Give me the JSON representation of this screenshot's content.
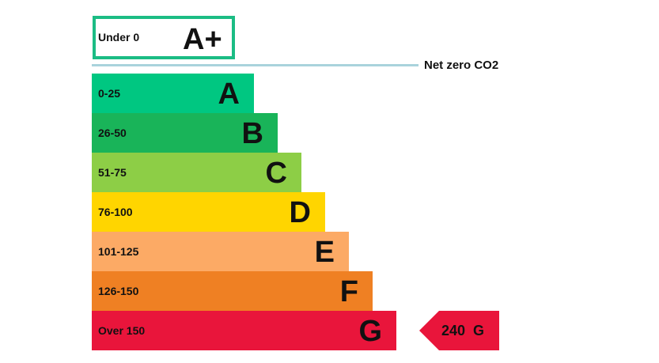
{
  "chart_data": {
    "type": "bar",
    "top_band": {
      "range": "Under 0",
      "letter": "A+",
      "border_color": "#1bbc84"
    },
    "net_zero_label": "Net zero CO2",
    "net_zero_line_color": "#a9d3dc",
    "bands": [
      {
        "range": "0-25",
        "letter": "A",
        "color": "#00c781"
      },
      {
        "range": "26-50",
        "letter": "B",
        "color": "#19b459"
      },
      {
        "range": "51-75",
        "letter": "C",
        "color": "#8dce46"
      },
      {
        "range": "76-100",
        "letter": "D",
        "color": "#ffd500"
      },
      {
        "range": "101-125",
        "letter": "E",
        "color": "#fcaa65"
      },
      {
        "range": "126-150",
        "letter": "F",
        "color": "#ef8023"
      },
      {
        "range": "Over 150",
        "letter": "G",
        "color": "#e9153b"
      }
    ],
    "rating": {
      "value": 240,
      "band": "G",
      "label": "240 G",
      "color": "#e9153b"
    }
  }
}
